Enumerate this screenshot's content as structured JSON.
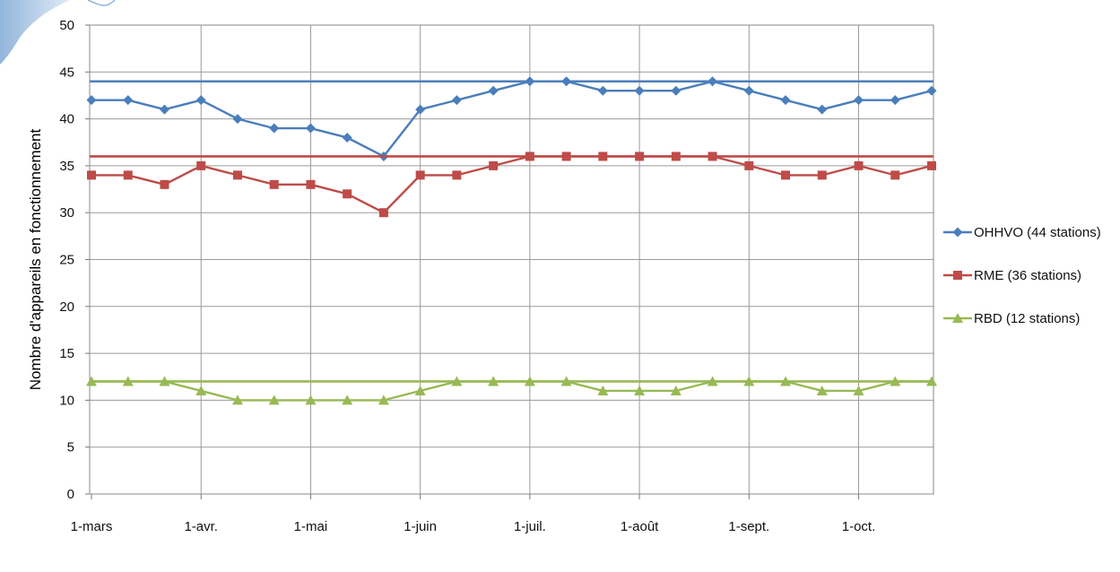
{
  "chart_data": {
    "type": "line",
    "title": "",
    "xlabel": "",
    "ylabel": "Nombre d'appareils en fonctionnement",
    "ylim": [
      0,
      50
    ],
    "yticks": [
      0,
      5,
      10,
      15,
      20,
      25,
      30,
      35,
      40,
      45,
      50
    ],
    "x_month_labels": [
      "1-mars",
      "1-avr.",
      "1-mai",
      "1-juin",
      "1-juil.",
      "1-août",
      "1-sept.",
      "1-oct."
    ],
    "x_dates": [
      "03-01",
      "03-11",
      "03-21",
      "04-01",
      "04-11",
      "04-21",
      "05-01",
      "05-11",
      "05-21",
      "06-01",
      "06-11",
      "06-21",
      "07-01",
      "07-11",
      "07-21",
      "08-01",
      "08-11",
      "08-21",
      "09-01",
      "09-11",
      "09-21",
      "10-01",
      "10-11",
      "10-21"
    ],
    "grid": true,
    "legend_position": "right",
    "series": [
      {
        "name": "OHHVO (44 stations)",
        "color": "#4A7EBB",
        "marker": "diamond",
        "reference": 44,
        "values": [
          42,
          42,
          41,
          42,
          40,
          39,
          39,
          38,
          36,
          41,
          42,
          43,
          44,
          44,
          43,
          43,
          43,
          44,
          43,
          42,
          41,
          42,
          42,
          43
        ]
      },
      {
        "name": "RME (36 stations)",
        "color": "#BE4B48",
        "marker": "square",
        "reference": 36,
        "values": [
          34,
          34,
          33,
          35,
          34,
          33,
          33,
          32,
          30,
          34,
          34,
          35,
          36,
          36,
          36,
          36,
          36,
          36,
          35,
          34,
          34,
          35,
          34,
          35
        ]
      },
      {
        "name": "RBD (12 stations)",
        "color": "#98B954",
        "marker": "triangle",
        "reference": 12,
        "values": [
          12,
          12,
          12,
          11,
          10,
          10,
          10,
          10,
          10,
          11,
          12,
          12,
          12,
          12,
          11,
          11,
          11,
          12,
          12,
          12,
          11,
          11,
          12,
          12
        ]
      }
    ]
  }
}
